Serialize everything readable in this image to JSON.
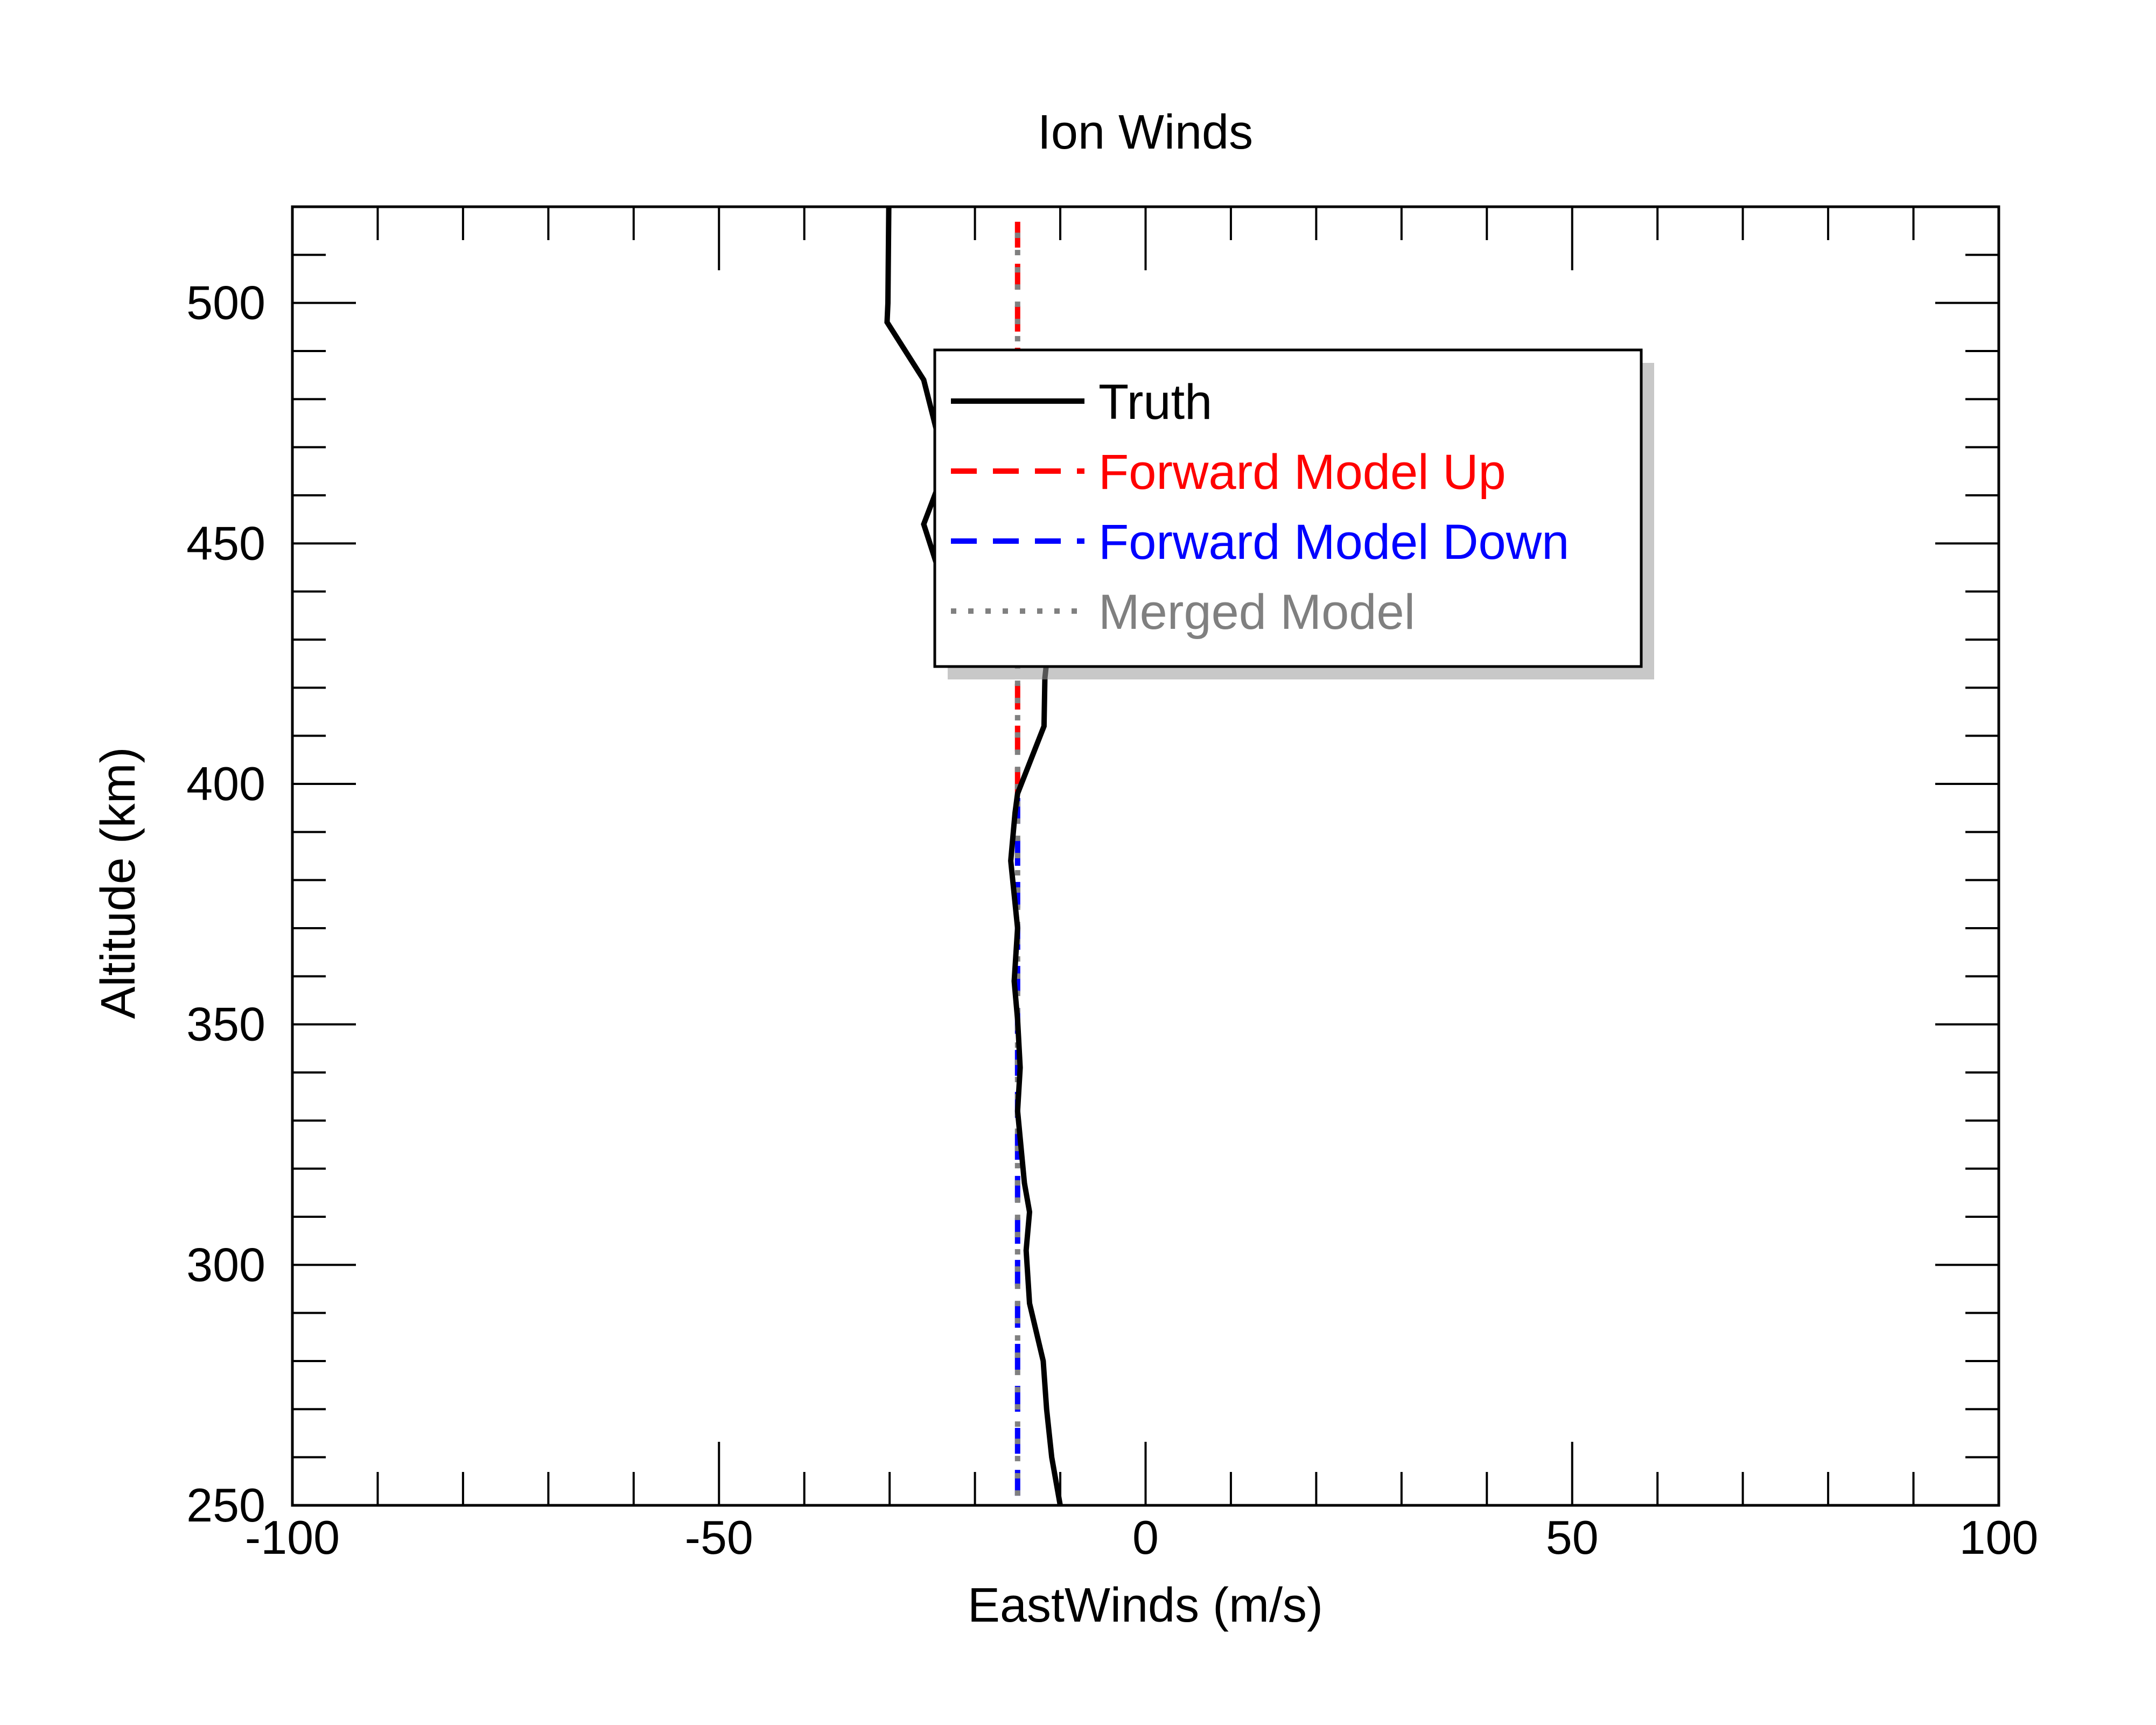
{
  "chart_data": {
    "type": "line",
    "title": "Ion Winds",
    "xlabel": "EastWinds (m/s)",
    "ylabel": "Altitude (km)",
    "xlim": [
      -100,
      100
    ],
    "ylim": [
      250,
      520
    ],
    "x_ticks": [
      -100,
      -50,
      0,
      50,
      100
    ],
    "y_ticks": [
      250,
      300,
      350,
      400,
      450,
      500
    ],
    "x_tick_labels": [
      "-100",
      "-50",
      "0",
      "50",
      "100"
    ],
    "y_tick_labels": [
      "250",
      "300",
      "350",
      "400",
      "450",
      "500"
    ],
    "x_minor_step": 10,
    "y_minor_step": 10,
    "grid": false,
    "legend_position": "top-center",
    "series": [
      {
        "name": "Truth",
        "color": "#000000",
        "style": "solid",
        "points": [
          [
            -30.1,
            520
          ],
          [
            -30.2,
            500
          ],
          [
            -30.3,
            496
          ],
          [
            -26.0,
            484
          ],
          [
            -24.0,
            470
          ],
          [
            -24.5,
            461
          ],
          [
            -26.0,
            454
          ],
          [
            -24.0,
            443
          ],
          [
            -11.5,
            427
          ],
          [
            -11.8,
            422
          ],
          [
            -11.9,
            412
          ],
          [
            -15.0,
            398
          ],
          [
            -15.3,
            394
          ],
          [
            -15.8,
            384
          ],
          [
            -15.0,
            370
          ],
          [
            -15.4,
            359
          ],
          [
            -15.0,
            351
          ],
          [
            -14.7,
            341
          ],
          [
            -15.0,
            332
          ],
          [
            -14.2,
            317
          ],
          [
            -13.6,
            311
          ],
          [
            -14.0,
            303
          ],
          [
            -13.6,
            292
          ],
          [
            -12.0,
            280
          ],
          [
            -11.6,
            270
          ],
          [
            -11.0,
            260
          ],
          [
            -10.0,
            250
          ]
        ]
      },
      {
        "name": "Forward Model Up",
        "color": "#ff0000",
        "style": "dashed",
        "points": [
          [
            -15.0,
            398
          ],
          [
            -15.0,
            517
          ]
        ]
      },
      {
        "name": "Forward Model Down",
        "color": "#0000ff",
        "style": "dashed",
        "points": [
          [
            -15.0,
            252
          ],
          [
            -15.0,
            398
          ]
        ]
      },
      {
        "name": "Merged Model",
        "color": "#808080",
        "style": "dotted",
        "points": [
          [
            -15.0,
            252
          ],
          [
            -15.0,
            517
          ]
        ]
      }
    ]
  }
}
